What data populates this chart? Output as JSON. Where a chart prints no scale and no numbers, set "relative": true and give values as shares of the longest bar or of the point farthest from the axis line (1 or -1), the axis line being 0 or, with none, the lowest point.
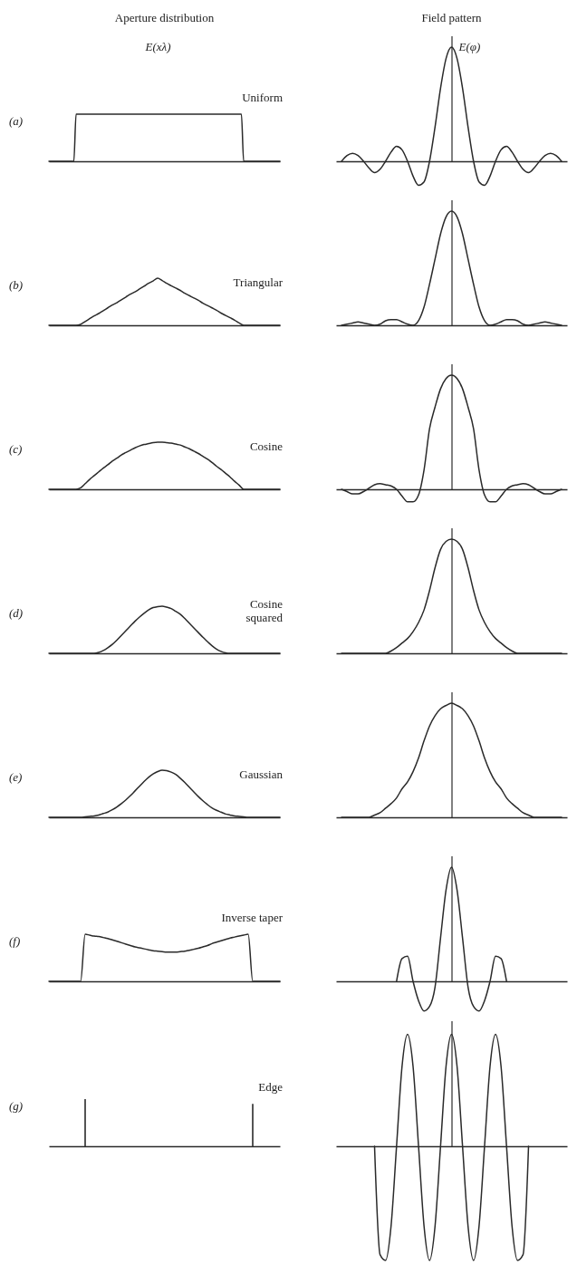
{
  "chart_data": [
    {
      "type": "line",
      "relative": true,
      "title": "Aperture distribution",
      "ylabel": "E(xλ)",
      "annotations": [
        "(a)",
        "Uniform"
      ],
      "color": "#2a2a2a",
      "categories": [
        null,
        null,
        null,
        null,
        null,
        null,
        null,
        null,
        null,
        null,
        null,
        null,
        null,
        null,
        null,
        null,
        null,
        null,
        null,
        null,
        null,
        null,
        null,
        null,
        null,
        null,
        null,
        null,
        null,
        null,
        null,
        null,
        null,
        null,
        null,
        null,
        null,
        null,
        null,
        null,
        null,
        null,
        null,
        null,
        null,
        null,
        null,
        null,
        null,
        null,
        null,
        null,
        null,
        null,
        null,
        null,
        null,
        null,
        null,
        null,
        null,
        null,
        null,
        null,
        null,
        null,
        null,
        null,
        null,
        null,
        null,
        null,
        null,
        null,
        null,
        null,
        null,
        null,
        null,
        null,
        null,
        null,
        null,
        null,
        null,
        null,
        null,
        null,
        null,
        null,
        null,
        null,
        null,
        null,
        null,
        null,
        null,
        null,
        null,
        null,
        null,
        null,
        null
      ],
      "values": [
        0,
        0,
        0,
        0,
        0,
        0,
        0,
        0,
        0,
        0,
        0,
        0,
        1,
        1,
        1,
        1,
        1,
        1,
        1,
        1,
        1,
        1,
        1,
        1,
        1,
        1,
        1,
        1,
        1,
        1,
        1,
        1,
        1,
        1,
        1,
        1,
        1,
        1,
        1,
        1,
        1,
        1,
        1,
        1,
        1,
        1,
        1,
        1,
        1,
        1,
        1,
        1,
        1,
        1,
        1,
        1,
        1,
        1,
        1,
        1,
        1,
        1,
        1,
        1,
        1,
        1,
        1,
        1,
        1,
        1,
        1,
        1,
        1,
        1,
        1,
        1,
        1,
        1,
        1,
        1,
        1,
        1,
        1,
        1,
        1,
        1,
        0,
        0,
        0,
        0,
        0,
        0,
        0,
        0,
        0,
        0,
        0,
        0,
        0,
        0,
        0,
        0,
        0
      ]
    },
    {
      "type": "line",
      "relative": true,
      "title": "Field pattern",
      "ylabel": "E(φ)",
      "color": "#2a2a2a",
      "categories": [
        null,
        null,
        null,
        null,
        null,
        null,
        null,
        null,
        null,
        null,
        null,
        null,
        null,
        null,
        null,
        null,
        null,
        null,
        null,
        null,
        null,
        null,
        null,
        null,
        null,
        null,
        null,
        null,
        null,
        null,
        null,
        null,
        null,
        null,
        null,
        null,
        null,
        null,
        null,
        null,
        null
      ],
      "values": [
        0,
        0.05,
        0.07,
        0.05,
        0,
        -0.06,
        -0.1,
        -0.07,
        0,
        0.08,
        0.13,
        0.1,
        0,
        -0.13,
        -0.21,
        -0.18,
        0,
        0.3,
        0.64,
        0.9,
        1,
        0.9,
        0.64,
        0.3,
        0,
        -0.18,
        -0.21,
        -0.13,
        0,
        0.1,
        0.13,
        0.08,
        0,
        -0.07,
        -0.1,
        -0.06,
        0,
        0.05,
        0.07,
        0.05,
        0
      ]
    },
    {
      "type": "line",
      "relative": true,
      "annotations": [
        "(b)",
        "Triangular"
      ],
      "color": "#2a2a2a",
      "categories": [
        null,
        null,
        null,
        null,
        null,
        null,
        null,
        null,
        null,
        null,
        null,
        null,
        null,
        null,
        null,
        null,
        null,
        null,
        null,
        null,
        null,
        null,
        null,
        null,
        null,
        null,
        null,
        null,
        null,
        null,
        null,
        null,
        null,
        null,
        null,
        null,
        null,
        null,
        null,
        null,
        null,
        null,
        null,
        null,
        null,
        null,
        null,
        null,
        null,
        null,
        null,
        null
      ],
      "values": [
        0,
        0,
        0,
        0,
        0,
        0,
        0,
        0.02,
        0.08,
        0.14,
        0.2,
        0.25,
        0.31,
        0.37,
        0.43,
        0.48,
        0.54,
        0.6,
        0.66,
        0.71,
        0.77,
        0.83,
        0.89,
        0.94,
        1,
        0.95,
        0.89,
        0.84,
        0.79,
        0.74,
        0.68,
        0.63,
        0.58,
        0.53,
        0.47,
        0.42,
        0.37,
        0.32,
        0.26,
        0.21,
        0.16,
        0.11,
        0.05,
        0,
        0,
        0,
        0,
        0,
        0,
        0,
        0,
        0
      ]
    },
    {
      "type": "line",
      "relative": true,
      "color": "#2a2a2a",
      "categories": [
        null,
        null,
        null,
        null,
        null,
        null,
        null,
        null,
        null,
        null,
        null,
        null,
        null,
        null,
        null,
        null,
        null,
        null,
        null,
        null,
        null,
        null,
        null,
        null,
        null,
        null,
        null,
        null,
        null,
        null,
        null,
        null,
        null,
        null,
        null,
        null,
        null,
        null,
        null,
        null,
        null
      ],
      "values": [
        0,
        0.01,
        0.02,
        0.03,
        0.02,
        0.01,
        0,
        0.01,
        0.04,
        0.05,
        0.05,
        0.03,
        0.01,
        0,
        0.04,
        0.16,
        0.36,
        0.58,
        0.8,
        0.95,
        1,
        0.95,
        0.8,
        0.58,
        0.36,
        0.16,
        0.04,
        0,
        0.01,
        0.03,
        0.05,
        0.05,
        0.04,
        0.01,
        0,
        0.01,
        0.02,
        0.03,
        0.02,
        0.01,
        0
      ]
    },
    {
      "type": "line",
      "relative": true,
      "annotations": [
        "(c)",
        "Cosine"
      ],
      "color": "#2a2a2a",
      "categories": [
        null,
        null,
        null,
        null,
        null,
        null,
        null,
        null,
        null,
        null,
        null,
        null,
        null,
        null,
        null,
        null,
        null,
        null,
        null,
        null,
        null,
        null,
        null,
        null,
        null,
        null,
        null,
        null,
        null,
        null,
        null,
        null,
        null,
        null,
        null,
        null,
        null,
        null,
        null,
        null,
        null,
        null,
        null,
        null,
        null,
        null,
        null,
        null,
        null,
        null,
        null,
        null
      ],
      "values": [
        0,
        0,
        0,
        0,
        0,
        0,
        0,
        0.03,
        0.12,
        0.21,
        0.29,
        0.37,
        0.45,
        0.52,
        0.6,
        0.66,
        0.73,
        0.78,
        0.83,
        0.88,
        0.92,
        0.95,
        0.97,
        0.99,
        1,
        1,
        0.99,
        0.98,
        0.96,
        0.94,
        0.9,
        0.86,
        0.81,
        0.76,
        0.7,
        0.64,
        0.57,
        0.49,
        0.42,
        0.34,
        0.26,
        0.17,
        0.09,
        0,
        0,
        0,
        0,
        0,
        0,
        0,
        0,
        0
      ]
    },
    {
      "type": "line",
      "relative": true,
      "color": "#2a2a2a",
      "categories": [
        null,
        null,
        null,
        null,
        null,
        null,
        null,
        null,
        null,
        null,
        null,
        null,
        null,
        null,
        null,
        null,
        null,
        null,
        null,
        null,
        null,
        null,
        null,
        null,
        null,
        null,
        null,
        null,
        null,
        null,
        null,
        null,
        null,
        null,
        null,
        null,
        null,
        null,
        null,
        null,
        null
      ],
      "values": [
        0,
        -0.02,
        -0.04,
        -0.04,
        -0.02,
        0.01,
        0.04,
        0.05,
        0.04,
        0.03,
        0,
        -0.06,
        -0.11,
        -0.11,
        -0.05,
        0.17,
        0.53,
        0.72,
        0.88,
        0.97,
        1,
        0.97,
        0.88,
        0.72,
        0.53,
        0.17,
        -0.05,
        -0.11,
        -0.11,
        -0.06,
        0,
        0.03,
        0.04,
        0.05,
        0.04,
        0.01,
        -0.02,
        -0.04,
        -0.04,
        -0.02,
        0
      ]
    },
    {
      "type": "line",
      "relative": true,
      "annotations": [
        "(d)",
        "Cosine squared"
      ],
      "color": "#2a2a2a",
      "categories": [
        null,
        null,
        null,
        null,
        null,
        null,
        null,
        null,
        null,
        null,
        null,
        null,
        null,
        null,
        null,
        null,
        null,
        null,
        null,
        null,
        null,
        null,
        null,
        null,
        null,
        null,
        null,
        null,
        null,
        null,
        null,
        null,
        null,
        null,
        null,
        null,
        null,
        null,
        null,
        null,
        null,
        null,
        null,
        null,
        null,
        null,
        null,
        null,
        null,
        null,
        null,
        null
      ],
      "values": [
        0,
        0,
        0,
        0,
        0,
        0,
        0,
        0,
        0,
        0,
        0,
        0.02,
        0.06,
        0.12,
        0.19,
        0.28,
        0.38,
        0.48,
        0.58,
        0.68,
        0.77,
        0.85,
        0.92,
        0.97,
        0.99,
        1,
        0.98,
        0.95,
        0.89,
        0.83,
        0.74,
        0.64,
        0.54,
        0.44,
        0.34,
        0.25,
        0.16,
        0.09,
        0.04,
        0.01,
        0,
        0,
        0,
        0,
        0,
        0,
        0,
        0,
        0,
        0,
        0,
        0
      ]
    },
    {
      "type": "line",
      "relative": true,
      "color": "#2a2a2a",
      "categories": [
        null,
        null,
        null,
        null,
        null,
        null,
        null,
        null,
        null,
        null,
        null,
        null,
        null,
        null,
        null,
        null,
        null,
        null,
        null,
        null,
        null,
        null,
        null,
        null,
        null,
        null,
        null,
        null,
        null,
        null,
        null,
        null,
        null,
        null,
        null,
        null,
        null,
        null,
        null,
        null,
        null
      ],
      "values": [
        0,
        0,
        0,
        0,
        0,
        0,
        0,
        0,
        0,
        0.02,
        0.05,
        0.09,
        0.13,
        0.19,
        0.27,
        0.38,
        0.55,
        0.75,
        0.91,
        0.98,
        1,
        0.98,
        0.91,
        0.75,
        0.55,
        0.38,
        0.27,
        0.19,
        0.13,
        0.09,
        0.05,
        0.02,
        0,
        0,
        0,
        0,
        0,
        0,
        0,
        0,
        0
      ]
    },
    {
      "type": "line",
      "relative": true,
      "annotations": [
        "(e)",
        "Gaussian"
      ],
      "color": "#2a2a2a",
      "categories": [
        null,
        null,
        null,
        null,
        null,
        null,
        null,
        null,
        null,
        null,
        null,
        null,
        null,
        null,
        null,
        null,
        null,
        null,
        null,
        null,
        null,
        null,
        null,
        null,
        null,
        null,
        null,
        null,
        null,
        null,
        null,
        null,
        null,
        null,
        null,
        null,
        null,
        null,
        null,
        null,
        null,
        null,
        null,
        null,
        null,
        null,
        null,
        null,
        null,
        null,
        null,
        null
      ],
      "values": [
        0,
        0,
        0,
        0,
        0,
        0,
        0,
        0,
        0.01,
        0.02,
        0.03,
        0.05,
        0.08,
        0.11,
        0.16,
        0.22,
        0.29,
        0.37,
        0.46,
        0.56,
        0.66,
        0.76,
        0.85,
        0.92,
        0.97,
        1,
        0.99,
        0.96,
        0.91,
        0.83,
        0.74,
        0.64,
        0.54,
        0.44,
        0.35,
        0.27,
        0.2,
        0.15,
        0.11,
        0.07,
        0.05,
        0.03,
        0.02,
        0.01,
        0,
        0,
        0,
        0,
        0,
        0,
        0,
        0
      ]
    },
    {
      "type": "line",
      "relative": true,
      "color": "#2a2a2a",
      "categories": [
        null,
        null,
        null,
        null,
        null,
        null,
        null,
        null,
        null,
        null,
        null,
        null,
        null,
        null,
        null,
        null,
        null,
        null,
        null,
        null,
        null,
        null,
        null,
        null,
        null,
        null,
        null,
        null,
        null,
        null,
        null,
        null,
        null,
        null,
        null,
        null,
        null,
        null,
        null,
        null,
        null
      ],
      "values": [
        0,
        0,
        0,
        0,
        0,
        0,
        0.02,
        0.04,
        0.08,
        0.12,
        0.17,
        0.25,
        0.31,
        0.4,
        0.52,
        0.67,
        0.8,
        0.89,
        0.95,
        0.98,
        1,
        0.98,
        0.95,
        0.89,
        0.8,
        0.67,
        0.52,
        0.4,
        0.31,
        0.25,
        0.17,
        0.12,
        0.08,
        0.04,
        0.02,
        0,
        0,
        0,
        0,
        0,
        0
      ]
    },
    {
      "type": "line",
      "relative": true,
      "annotations": [
        "(f)",
        "Inverse taper"
      ],
      "color": "#2a2a2a",
      "categories": [
        null,
        null,
        null,
        null,
        null,
        null,
        null,
        null,
        null,
        null,
        null,
        null,
        null,
        null,
        null,
        null,
        null,
        null,
        null,
        null,
        null,
        null,
        null,
        null,
        null,
        null,
        null,
        null,
        null,
        null,
        null,
        null,
        null,
        null,
        null,
        null,
        null,
        null,
        null,
        null,
        null,
        null,
        null,
        null,
        null,
        null,
        null,
        null,
        null,
        null,
        null,
        null
      ],
      "values": [
        0,
        0,
        0,
        0,
        0,
        0,
        0,
        0,
        1,
        0.98,
        0.96,
        0.95,
        0.93,
        0.91,
        0.88,
        0.85,
        0.82,
        0.79,
        0.76,
        0.73,
        0.71,
        0.69,
        0.67,
        0.65,
        0.64,
        0.63,
        0.62,
        0.62,
        0.62,
        0.63,
        0.64,
        0.66,
        0.68,
        0.7,
        0.73,
        0.76,
        0.8,
        0.83,
        0.86,
        0.89,
        0.92,
        0.94,
        0.96,
        0.98,
        1,
        0,
        0,
        0,
        0,
        0,
        0,
        0
      ]
    },
    {
      "type": "line",
      "relative": true,
      "color": "#2a2a2a",
      "categories": [
        null,
        null,
        null,
        null,
        null,
        null,
        null,
        null,
        null,
        null,
        null,
        null,
        null,
        null,
        null,
        null,
        null,
        null,
        null,
        null,
        null,
        null,
        null,
        null,
        null,
        null,
        null,
        null,
        null,
        null,
        null,
        null,
        null,
        null,
        null,
        null,
        null,
        null,
        null,
        null,
        null
      ],
      "values": [
        null,
        null,
        null,
        null,
        null,
        null,
        null,
        null,
        null,
        null,
        0,
        0.2,
        0.22,
        0,
        -0.17,
        -0.26,
        -0.22,
        -0.05,
        0.38,
        0.8,
        1,
        0.8,
        0.38,
        -0.05,
        -0.22,
        -0.26,
        -0.17,
        0,
        0.22,
        0.2,
        0,
        null,
        null,
        null,
        null,
        null,
        null,
        null,
        null,
        null,
        null
      ]
    },
    {
      "type": "bar",
      "relative": true,
      "annotations": [
        "(g)",
        "Edge"
      ],
      "color": "#2a2a2a",
      "categories": [
        null,
        null,
        null,
        null,
        null,
        null,
        null,
        null,
        null,
        null,
        null,
        null,
        null,
        null,
        null,
        null,
        null,
        null,
        null,
        null,
        null,
        null,
        null,
        null,
        null,
        null,
        null,
        null,
        null,
        null,
        null,
        null,
        null,
        null,
        null,
        null,
        null,
        null,
        null,
        null,
        null,
        null,
        null,
        null,
        null,
        null,
        null,
        null,
        null,
        null,
        null,
        null
      ],
      "values": [
        null,
        null,
        null,
        null,
        null,
        null,
        null,
        null,
        1,
        null,
        null,
        null,
        null,
        null,
        null,
        null,
        null,
        null,
        null,
        null,
        null,
        null,
        null,
        null,
        null,
        null,
        null,
        null,
        null,
        null,
        null,
        null,
        null,
        null,
        null,
        null,
        null,
        null,
        null,
        null,
        null,
        null,
        null,
        null,
        null,
        0.9,
        null,
        null,
        null,
        null,
        null,
        null
      ]
    },
    {
      "type": "line",
      "relative": true,
      "color": "#2a2a2a",
      "categories": [
        null,
        null,
        null,
        null,
        null,
        null,
        null,
        null,
        null,
        null,
        null,
        null,
        null,
        null,
        null,
        null,
        null,
        null,
        null,
        null,
        null,
        null,
        null,
        null,
        null,
        null,
        null,
        null,
        null,
        null,
        null,
        null,
        null,
        null,
        null,
        null,
        null,
        null,
        null,
        null,
        null
      ],
      "values": [
        null,
        null,
        null,
        null,
        null,
        null,
        0,
        -0.95,
        -1,
        -0.7,
        0,
        0.7,
        0.98,
        0.7,
        0,
        -0.7,
        -1,
        -0.7,
        0,
        0.7,
        0.98,
        0.7,
        0,
        -0.7,
        -1,
        -0.7,
        0,
        0.7,
        0.98,
        0.7,
        0,
        -0.7,
        -1,
        -0.95,
        0,
        null,
        null,
        null,
        null,
        null,
        null
      ]
    }
  ]
}
